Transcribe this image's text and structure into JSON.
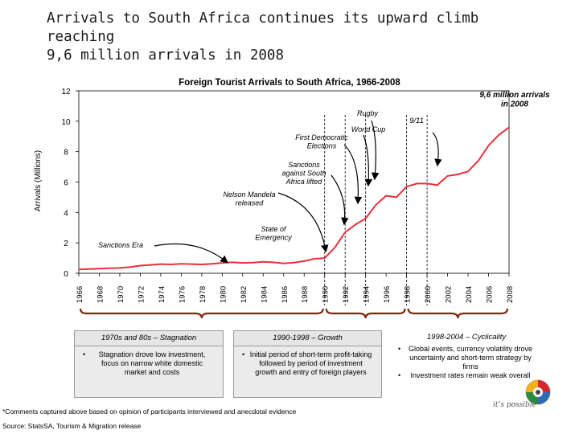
{
  "slide": {
    "title": "Arrivals to South Africa continues its upward climb reaching\n9,6 million arrivals in 2008"
  },
  "chart_data": {
    "type": "line",
    "title": "Foreign Tourist Arrivals to South Africa, 1966-2008",
    "ylabel": "Arrivals (Millions)",
    "xlabel": "",
    "ylim": [
      0,
      12
    ],
    "xlim": [
      1966,
      2008
    ],
    "yticks": [
      0,
      2,
      4,
      6,
      8,
      10,
      12
    ],
    "xticks": [
      1966,
      1968,
      1970,
      1972,
      1974,
      1976,
      1978,
      1980,
      1982,
      1984,
      1986,
      1988,
      1990,
      1992,
      1994,
      1996,
      1998,
      2000,
      2002,
      2004,
      2006,
      2008
    ],
    "grid": false,
    "color": "#e8303a",
    "series": [
      {
        "x": [
          1966,
          1967,
          1968,
          1969,
          1970,
          1971,
          1972,
          1973,
          1974,
          1975,
          1976,
          1977,
          1978,
          1979,
          1980,
          1981,
          1982,
          1983,
          1984,
          1985,
          1986,
          1987,
          1988,
          1989,
          1990,
          1991,
          1992,
          1993,
          1994,
          1995,
          1996,
          1997,
          1998,
          1999,
          2000,
          2001,
          2002,
          2003,
          2004,
          2005,
          2006,
          2007,
          2008
        ],
        "values": [
          0.25,
          0.28,
          0.3,
          0.33,
          0.35,
          0.4,
          0.5,
          0.55,
          0.6,
          0.58,
          0.62,
          0.6,
          0.58,
          0.62,
          0.68,
          0.72,
          0.68,
          0.7,
          0.75,
          0.72,
          0.65,
          0.7,
          0.8,
          0.95,
          1.0,
          1.7,
          2.7,
          3.2,
          3.6,
          4.5,
          5.1,
          5.0,
          5.7,
          5.9,
          5.9,
          5.8,
          6.4,
          6.5,
          6.7,
          7.4,
          8.4,
          9.1,
          9.6
        ]
      }
    ],
    "annotations": [
      {
        "text": "9,6 million arrivals\nin 2008",
        "year": 2008
      },
      {
        "text": "9/11",
        "year": 2001
      },
      {
        "text": "Rugby",
        "year": 1995
      },
      {
        "text": "World Cup",
        "year": 1995
      },
      {
        "text": "First Democratic\nElections",
        "year": 1994
      },
      {
        "text": "Sanctions\nagainst South\nAfrica lifted",
        "year": 1991
      },
      {
        "text": "Nelson Mandela\nreleased",
        "year": 1990
      },
      {
        "text": "State of\nEmergency",
        "year": 1985
      },
      {
        "text": "Sanctions Era",
        "year": 1980
      }
    ],
    "periods": [
      {
        "label": "1970s and 80s – Stagnation",
        "from": 1966,
        "to": 1990
      },
      {
        "label": "1990-1998 – Growth",
        "from": 1990,
        "to": 1998
      },
      {
        "label": "1998-2004 – Cyclicality",
        "from": 1998,
        "to": 2008
      }
    ]
  },
  "panels": {
    "stagnation": {
      "head": "1970s and 80s – Stagnation",
      "bullet": "Stagnation drove low investment, focus on narrow white domestic market and costs"
    },
    "growth": {
      "head": "1990-1998 – Growth",
      "bullet": "Initial period of short-term profit-taking followed by period of investment growth and entry of foreign players"
    },
    "cyclicality": {
      "head": "1998-2004 – Cyclicality",
      "bullets": [
        "Global events, currency volatility drove uncertainty and short-term strategy by firms",
        "Investment rates remain weak overall"
      ]
    }
  },
  "footer": {
    "comments": "*Comments captured above based on opinion of participants interviewed and anecdotal evidence",
    "source": "Source:  StatsSA, Tourism & Migration release",
    "tagline": "it’s possible"
  },
  "brand": {
    "logo_icon": "south-africa-tourism-logo-icon",
    "colors": {
      "line": "#e8303a",
      "brace": "#7a2a0c",
      "logo_red": "#d7262e",
      "logo_green": "#2e8b3d",
      "logo_blue": "#2c6db5",
      "logo_yellow": "#f2b21b"
    }
  }
}
